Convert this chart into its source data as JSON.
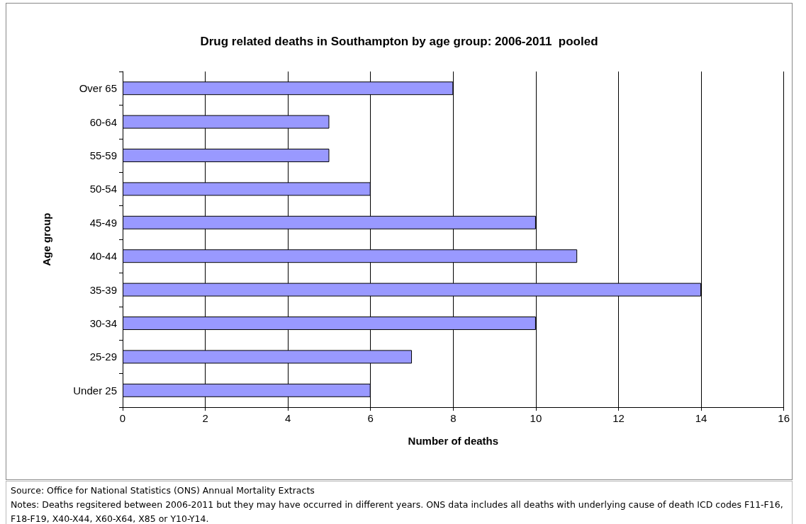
{
  "chart_data": {
    "type": "bar",
    "orientation": "horizontal",
    "title": "Drug related deaths in Southampton by age group: 2006-2011  pooled",
    "xlabel": "Number of deaths",
    "ylabel": "Age group",
    "categories": [
      "Over 65",
      "60-64",
      "55-59",
      "50-54",
      "45-49",
      "40-44",
      "35-39",
      "30-34",
      "25-29",
      "Under 25"
    ],
    "values": [
      8,
      5,
      5,
      6,
      10,
      11,
      14,
      10,
      7,
      6
    ],
    "color": "#9999ff",
    "xlim": [
      0,
      16
    ],
    "xticks": [
      0,
      2,
      4,
      6,
      8,
      10,
      12,
      14,
      16
    ],
    "grid": "x",
    "annotations": [
      "Source: Office for National Statistics (ONS) Annual Mortality Extracts",
      "Notes: Deaths regsitered between 2006-2011 but they may have occurred in different years. ONS data includes all deaths with underlying cause of death ICD codes F11-F16, F18-F19, X40-X44, X60-X64, X85 or Y10-Y14."
    ]
  }
}
